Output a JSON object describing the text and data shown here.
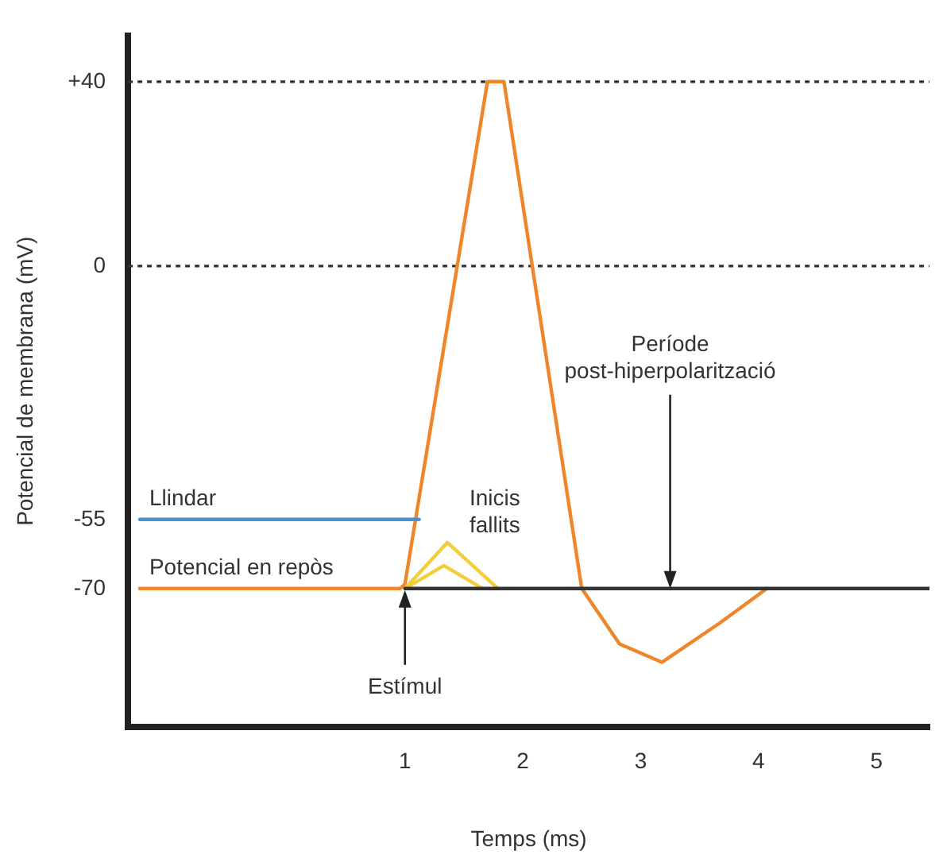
{
  "chart_data": {
    "type": "line",
    "xlabel": "Temps (ms)",
    "ylabel": "Potencial de membrana (mV)",
    "xlim": [
      -1.35,
      5.45
    ],
    "ylim": [
      -100,
      50
    ],
    "xticks": [
      1,
      2,
      3,
      4,
      5
    ],
    "yticks": [
      -70,
      -55,
      0,
      {
        "value": 40,
        "label": "+40"
      }
    ],
    "grid": false,
    "legend": false,
    "marker": "none",
    "line_style": "solid",
    "series": [
      {
        "color": "#333333",
        "x": [
          1,
          5.45
        ],
        "values": [
          -70,
          -70
        ]
      },
      {
        "color": "#4a90d0",
        "x": [
          -1.25,
          1.12
        ],
        "values": [
          -55,
          -55
        ]
      },
      {
        "color": "#f2cf3a",
        "x": [
          1,
          1.36,
          1.79
        ],
        "values": [
          -70,
          -60,
          -70
        ]
      },
      {
        "color": "#f2cf3a",
        "x": [
          1,
          1.33,
          1.66
        ],
        "values": [
          -70,
          -65,
          -70
        ]
      },
      {
        "color": "#f0862a",
        "x": [
          -1.25,
          0.96,
          1,
          1.7,
          1.84,
          2.5,
          2.82,
          3.18,
          3.67,
          4.07
        ],
        "values": [
          -70,
          -70,
          -69,
          40,
          40,
          -70,
          -82,
          -86,
          -77.5,
          -70
        ]
      }
    ],
    "ref_lines": [
      {
        "axis": "y",
        "value": 40,
        "line_style": "dotted",
        "color": "#333333"
      },
      {
        "axis": "y",
        "value": 0,
        "line_style": "dotted",
        "color": "#333333"
      }
    ],
    "annotations": [
      {
        "text": "Llindar",
        "x": -1.25,
        "y": -55
      },
      {
        "text": "Potencial en repòs",
        "x": -1.25,
        "y": -70
      },
      {
        "text": "Inicis\nfallits",
        "x": 1.79,
        "y": -70
      },
      {
        "text": "Estímul",
        "x": 1,
        "y": -70
      },
      {
        "text": "Període\npost-hiperpolarització",
        "x": 3.25,
        "y": -70
      }
    ]
  }
}
